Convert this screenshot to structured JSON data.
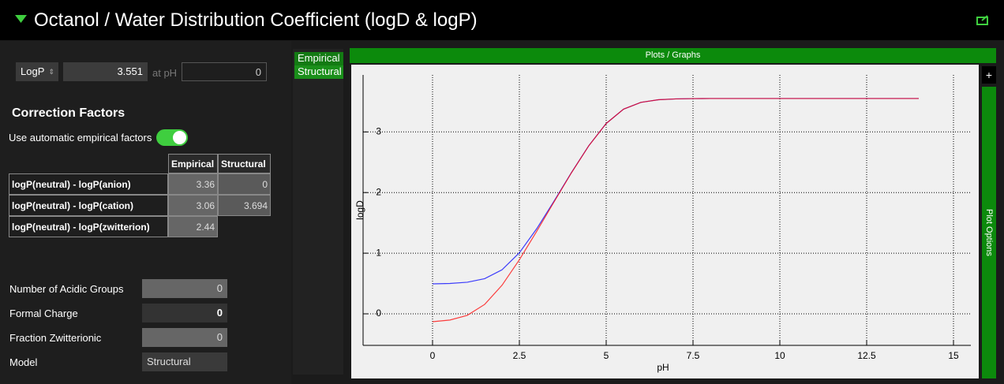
{
  "header": {
    "title": "Octanol / Water Distribution Coefficient (logD & logP)"
  },
  "inputs": {
    "mode": "LogP",
    "value": 3.551,
    "at_ph_label": "at pH",
    "ph": 0
  },
  "correction_factors": {
    "title": "Correction Factors",
    "toggle_label": "Use automatic empirical factors",
    "toggle_on": true,
    "table": {
      "columns": [
        "Empirical",
        "Structural"
      ],
      "rows": [
        {
          "label": "logP(neutral) - logP(anion)",
          "cells": [
            3.36,
            0
          ]
        },
        {
          "label": "logP(neutral) - logP(cation)",
          "cells": [
            3.06,
            3.694
          ]
        },
        {
          "label": "logP(neutral) - logP(zwitterion)",
          "cells": [
            2.44
          ]
        }
      ]
    }
  },
  "properties": [
    {
      "label": "Number of Acidic Groups",
      "value": 0
    },
    {
      "label": "Formal Charge",
      "value": 0
    },
    {
      "label": "Fraction Zwitterionic",
      "value": 0
    },
    {
      "label": "Model",
      "value": "Structural"
    }
  ],
  "tabs": [
    "Empirical",
    "Structural"
  ],
  "panel": {
    "title": "Plots / Graphs",
    "side": "Plot Options",
    "button": "+"
  },
  "chart_data": {
    "type": "line",
    "x_label": "pH",
    "y_label": "logD",
    "x": [
      0,
      0.5,
      1,
      1.5,
      2,
      2.5,
      3,
      3.5,
      4,
      4.5,
      5,
      5.5,
      6,
      6.5,
      7,
      7.5,
      8,
      8.5,
      9,
      9.5,
      10,
      10.5,
      11,
      11.5,
      12,
      12.5,
      13,
      13.5,
      14
    ],
    "series": [
      {
        "name": "Empirical",
        "color": "#0000ff",
        "values": [
          0.494,
          0.501,
          0.521,
          0.58,
          0.726,
          1.007,
          1.404,
          1.861,
          2.33,
          2.774,
          3.139,
          3.375,
          3.487,
          3.53,
          3.544,
          3.549,
          3.551,
          3.551,
          3.551,
          3.551,
          3.551,
          3.551,
          3.551,
          3.551,
          3.551,
          3.551,
          3.551,
          3.551,
          3.551
        ]
      },
      {
        "name": "Structural",
        "color": "#ff0000",
        "values": [
          -0.13,
          -0.102,
          -0.025,
          0.155,
          0.471,
          0.892,
          1.362,
          1.847,
          2.326,
          2.772,
          3.139,
          3.375,
          3.487,
          3.53,
          3.544,
          3.549,
          3.551,
          3.551,
          3.551,
          3.551,
          3.551,
          3.551,
          3.551,
          3.551,
          3.551,
          3.551,
          3.551,
          3.551,
          3.551
        ]
      }
    ],
    "xlim": [
      -2,
      15.5
    ],
    "ylim": [
      -0.52,
      3.94
    ],
    "xticks": [
      0,
      2.5,
      5,
      7.5,
      10,
      12.5,
      15
    ],
    "yticks": [
      0,
      1,
      2,
      3
    ],
    "grid": true
  }
}
